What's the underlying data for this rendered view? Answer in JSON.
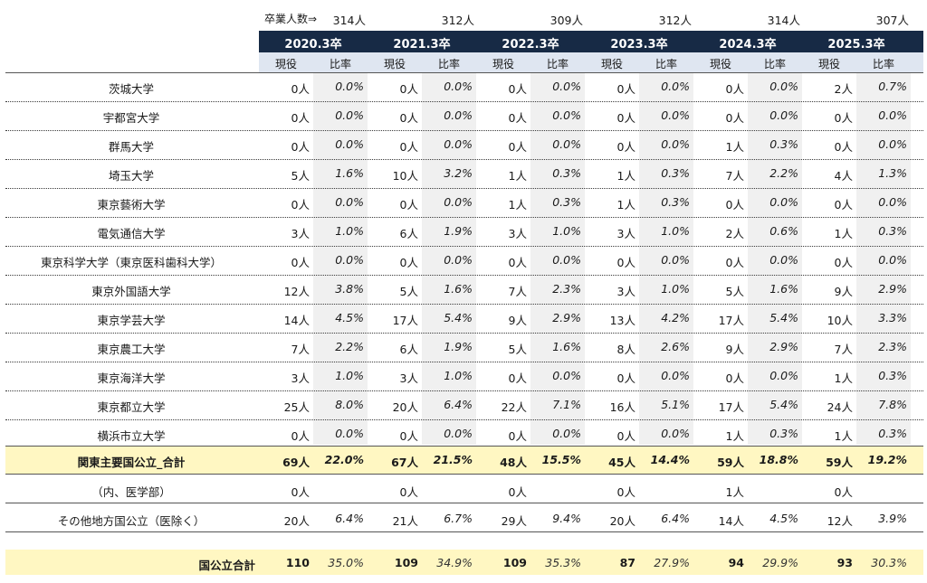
{
  "header": {
    "grad_label": "卒業人数⇒",
    "grads": [
      "314人",
      "312人",
      "309人",
      "312人",
      "314人",
      "307人"
    ],
    "years": [
      "2020.3卒",
      "2021.3卒",
      "2022.3卒",
      "2023.3卒",
      "2024.3卒",
      "2025.3卒"
    ],
    "sub": [
      "現役",
      "比率"
    ]
  },
  "rows": [
    {
      "name": "茨城大学",
      "cells": [
        [
          "0人",
          "0.0%"
        ],
        [
          "0人",
          "0.0%"
        ],
        [
          "0人",
          "0.0%"
        ],
        [
          "0人",
          "0.0%"
        ],
        [
          "0人",
          "0.0%"
        ],
        [
          "2人",
          "0.7%"
        ]
      ]
    },
    {
      "name": "宇都宮大学",
      "cells": [
        [
          "0人",
          "0.0%"
        ],
        [
          "0人",
          "0.0%"
        ],
        [
          "0人",
          "0.0%"
        ],
        [
          "0人",
          "0.0%"
        ],
        [
          "0人",
          "0.0%"
        ],
        [
          "0人",
          "0.0%"
        ]
      ]
    },
    {
      "name": "群馬大学",
      "cells": [
        [
          "0人",
          "0.0%"
        ],
        [
          "0人",
          "0.0%"
        ],
        [
          "0人",
          "0.0%"
        ],
        [
          "0人",
          "0.0%"
        ],
        [
          "1人",
          "0.3%"
        ],
        [
          "0人",
          "0.0%"
        ]
      ]
    },
    {
      "name": "埼玉大学",
      "cells": [
        [
          "5人",
          "1.6%"
        ],
        [
          "10人",
          "3.2%"
        ],
        [
          "1人",
          "0.3%"
        ],
        [
          "1人",
          "0.3%"
        ],
        [
          "7人",
          "2.2%"
        ],
        [
          "4人",
          "1.3%"
        ]
      ]
    },
    {
      "name": "東京藝術大学",
      "cells": [
        [
          "0人",
          "0.0%"
        ],
        [
          "0人",
          "0.0%"
        ],
        [
          "1人",
          "0.3%"
        ],
        [
          "1人",
          "0.3%"
        ],
        [
          "0人",
          "0.0%"
        ],
        [
          "0人",
          "0.0%"
        ]
      ]
    },
    {
      "name": "電気通信大学",
      "cells": [
        [
          "3人",
          "1.0%"
        ],
        [
          "6人",
          "1.9%"
        ],
        [
          "3人",
          "1.0%"
        ],
        [
          "3人",
          "1.0%"
        ],
        [
          "2人",
          "0.6%"
        ],
        [
          "1人",
          "0.3%"
        ]
      ]
    },
    {
      "name": "東京科学大学（東京医科歯科大学）",
      "cells": [
        [
          "0人",
          "0.0%"
        ],
        [
          "0人",
          "0.0%"
        ],
        [
          "0人",
          "0.0%"
        ],
        [
          "0人",
          "0.0%"
        ],
        [
          "0人",
          "0.0%"
        ],
        [
          "0人",
          "0.0%"
        ]
      ]
    },
    {
      "name": "東京外国語大学",
      "cells": [
        [
          "12人",
          "3.8%"
        ],
        [
          "5人",
          "1.6%"
        ],
        [
          "7人",
          "2.3%"
        ],
        [
          "3人",
          "1.0%"
        ],
        [
          "5人",
          "1.6%"
        ],
        [
          "9人",
          "2.9%"
        ]
      ]
    },
    {
      "name": "東京学芸大学",
      "cells": [
        [
          "14人",
          "4.5%"
        ],
        [
          "17人",
          "5.4%"
        ],
        [
          "9人",
          "2.9%"
        ],
        [
          "13人",
          "4.2%"
        ],
        [
          "17人",
          "5.4%"
        ],
        [
          "10人",
          "3.3%"
        ]
      ]
    },
    {
      "name": "東京農工大学",
      "cells": [
        [
          "7人",
          "2.2%"
        ],
        [
          "6人",
          "1.9%"
        ],
        [
          "5人",
          "1.6%"
        ],
        [
          "8人",
          "2.6%"
        ],
        [
          "9人",
          "2.9%"
        ],
        [
          "7人",
          "2.3%"
        ]
      ]
    },
    {
      "name": "東京海洋大学",
      "cells": [
        [
          "3人",
          "1.0%"
        ],
        [
          "3人",
          "1.0%"
        ],
        [
          "0人",
          "0.0%"
        ],
        [
          "0人",
          "0.0%"
        ],
        [
          "0人",
          "0.0%"
        ],
        [
          "1人",
          "0.3%"
        ]
      ]
    },
    {
      "name": "東京都立大学",
      "cells": [
        [
          "25人",
          "8.0%"
        ],
        [
          "20人",
          "6.4%"
        ],
        [
          "22人",
          "7.1%"
        ],
        [
          "16人",
          "5.1%"
        ],
        [
          "17人",
          "5.4%"
        ],
        [
          "24人",
          "7.8%"
        ]
      ]
    },
    {
      "name": "横浜市立大学",
      "cells": [
        [
          "0人",
          "0.0%"
        ],
        [
          "0人",
          "0.0%"
        ],
        [
          "0人",
          "0.0%"
        ],
        [
          "0人",
          "0.0%"
        ],
        [
          "1人",
          "0.3%"
        ],
        [
          "1人",
          "0.3%"
        ]
      ]
    }
  ],
  "subtotal": {
    "name": "関東主要国公立_合計",
    "cells": [
      [
        "69人",
        "22.0%"
      ],
      [
        "67人",
        "21.5%"
      ],
      [
        "48人",
        "15.5%"
      ],
      [
        "45人",
        "14.4%"
      ],
      [
        "59人",
        "18.8%"
      ],
      [
        "59人",
        "19.2%"
      ]
    ]
  },
  "medical": {
    "name": "（内、医学部）",
    "cells": [
      [
        "0人",
        ""
      ],
      [
        "0人",
        ""
      ],
      [
        "0人",
        ""
      ],
      [
        "0人",
        ""
      ],
      [
        "1人",
        ""
      ],
      [
        "0人",
        ""
      ]
    ]
  },
  "other": {
    "name": "その他地方国公立（医除く）",
    "cells": [
      [
        "20人",
        "6.4%"
      ],
      [
        "21人",
        "6.7%"
      ],
      [
        "29人",
        "9.4%"
      ],
      [
        "20人",
        "6.4%"
      ],
      [
        "14人",
        "4.5%"
      ],
      [
        "12人",
        "3.9%"
      ]
    ]
  },
  "total": {
    "name": "国公立合計",
    "cells": [
      [
        "110",
        "35.0%"
      ],
      [
        "109",
        "34.9%"
      ],
      [
        "109",
        "35.3%"
      ],
      [
        "87",
        "27.9%"
      ],
      [
        "94",
        "29.9%"
      ],
      [
        "93",
        "30.3%"
      ]
    ]
  },
  "colors": {
    "navy": "#172a45",
    "subhead": "#dfe6f1",
    "shade": "#f0f0f0",
    "yellow": "#fff7c2"
  }
}
